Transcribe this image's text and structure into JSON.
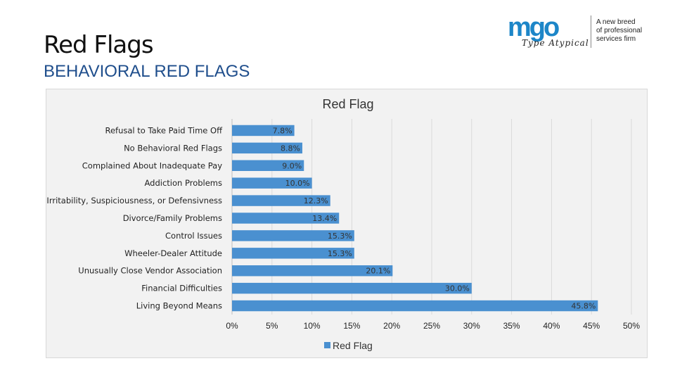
{
  "slide": {
    "title": "Red Flags",
    "subtitle": "BEHAVIORAL RED FLAGS"
  },
  "logo": {
    "mark": "mgo",
    "script": "Type Atypical",
    "tagline": [
      "A new breed",
      "of professional",
      "services firm"
    ],
    "color": "#1d86c8"
  },
  "chart_data": {
    "type": "bar",
    "orientation": "horizontal",
    "title": "Red Flag",
    "categories": [
      "Refusal to Take Paid Time Off",
      "No Behavioral Red Flags",
      "Complained About Inadequate Pay",
      "Addiction Problems",
      "Irritability, Suspiciousness, or Defensivness",
      "Divorce/Family Problems",
      "Control Issues",
      "Wheeler-Dealer Attitude",
      "Unusually Close Vendor Association",
      "Financial Difficulties",
      "Living Beyond Means"
    ],
    "series": [
      {
        "name": "Red Flag",
        "values": [
          7.8,
          8.8,
          9.0,
          10.0,
          12.3,
          13.4,
          15.3,
          15.3,
          20.1,
          30.0,
          45.8
        ],
        "labels": [
          "7.8%",
          "8.8%",
          "9.0%",
          "10.0%",
          "12.3%",
          "13.4%",
          "15.3%",
          "15.3%",
          "20.1%",
          "30.0%",
          "45.8%"
        ],
        "color": "#4a90d0"
      }
    ],
    "xlim": [
      0,
      50
    ],
    "xticks": [
      "0%",
      "5%",
      "10%",
      "15%",
      "20%",
      "25%",
      "30%",
      "35%",
      "40%",
      "45%",
      "50%"
    ],
    "grid": true,
    "legend": "bottom"
  }
}
